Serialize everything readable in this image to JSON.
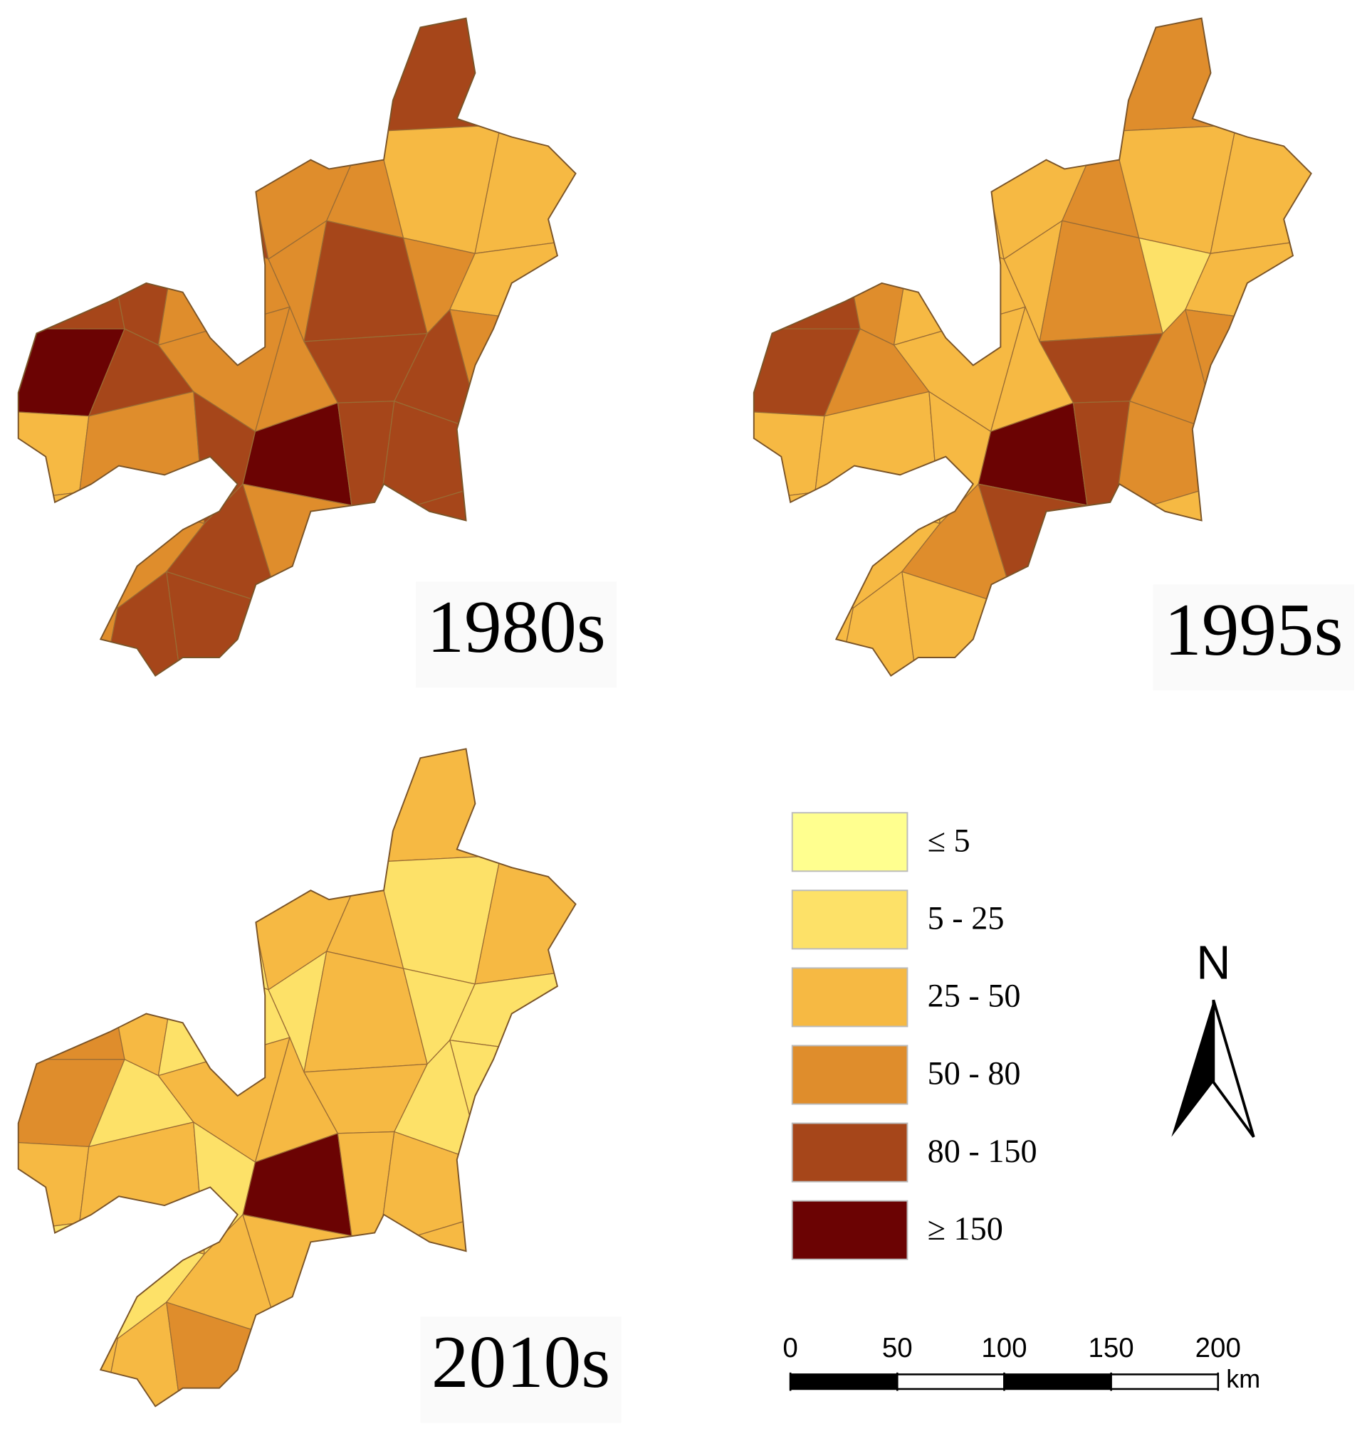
{
  "panels": [
    "1980s",
    "1995s",
    "2010s"
  ],
  "legend": {
    "items": [
      {
        "label": "≤ 5",
        "color": "#ffff8f"
      },
      {
        "label": "5 - 25",
        "color": "#fde168"
      },
      {
        "label": "25 - 50",
        "color": "#f6b943"
      },
      {
        "label": "50 - 80",
        "color": "#df8d2c"
      },
      {
        "label": "80 - 150",
        "color": "#a6461a"
      },
      {
        "label": "≥ 150",
        "color": "#6b0303"
      }
    ]
  },
  "north_arrow": "N",
  "scale_bar": {
    "ticks": [
      0,
      50,
      100,
      150,
      200
    ],
    "unit": "km"
  }
}
